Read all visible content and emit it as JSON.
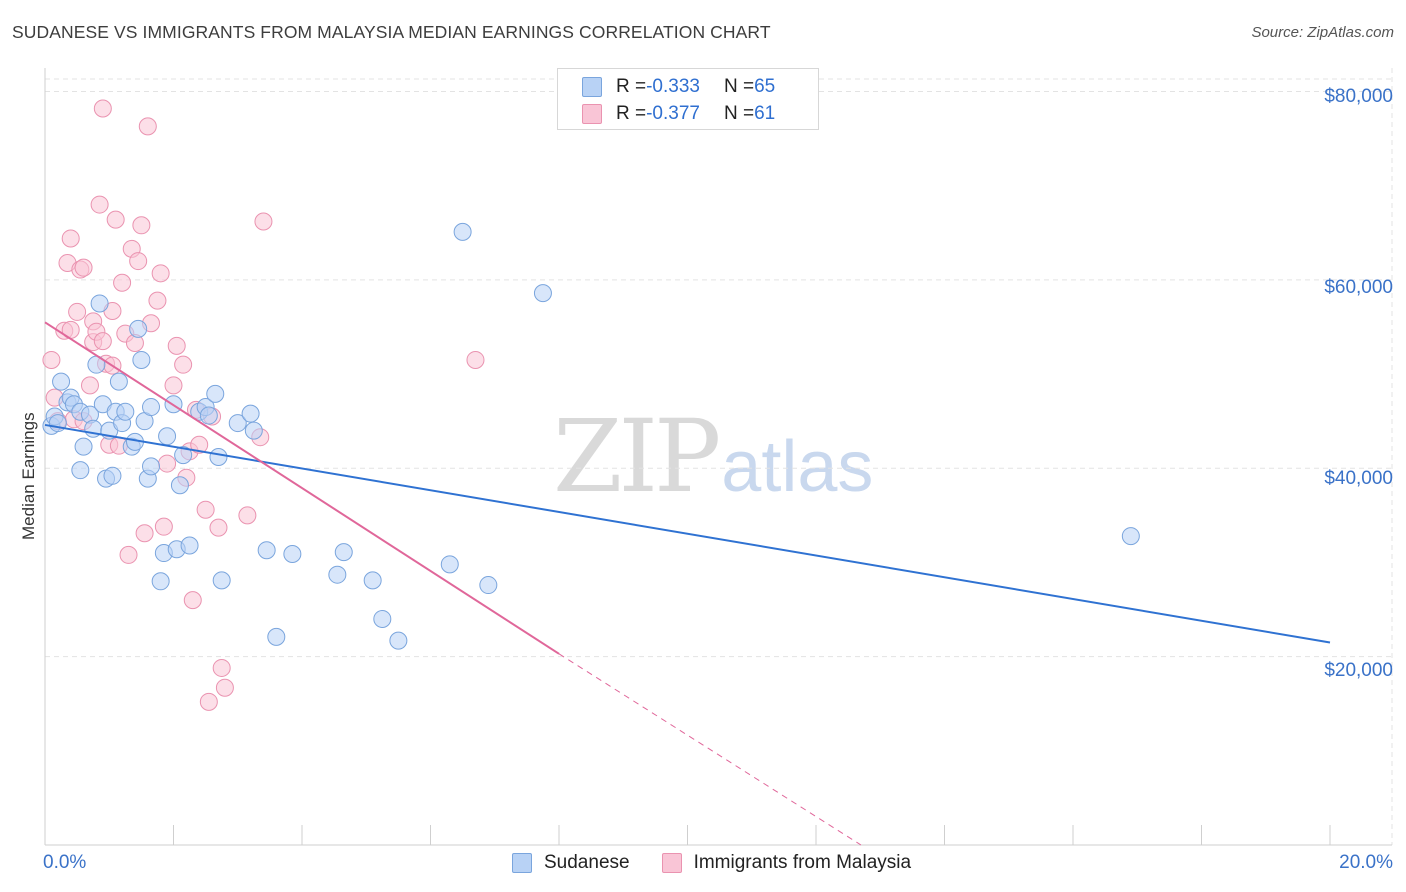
{
  "title": "SUDANESE VS IMMIGRANTS FROM MALAYSIA MEDIAN EARNINGS CORRELATION CHART",
  "source": "Source: ZipAtlas.com",
  "watermark": {
    "zip": "ZIP",
    "atlas": "atlas"
  },
  "legend": {
    "rows": [
      {
        "r_label": "R = ",
        "r_value": "-0.333",
        "n_label": "N = ",
        "n_value": "65"
      },
      {
        "r_label": "R = ",
        "r_value": "-0.377",
        "n_label": "N = ",
        "n_value": "61"
      }
    ]
  },
  "colors": {
    "blue_fill": "#b8d2f5",
    "blue_stroke": "#7aa5dd",
    "blue_line": "#2f72d2",
    "pink_fill": "#f9c5d6",
    "pink_stroke": "#ea93b0",
    "pink_line": "#e0679a",
    "grid": "#e3e3e3",
    "axis_text": "#3a72c8"
  },
  "chart_data": {
    "type": "scatter",
    "title": "SUDANESE VS IMMIGRANTS FROM MALAYSIA MEDIAN EARNINGS CORRELATION CHART",
    "xlabel": "",
    "ylabel": "Median Earnings",
    "xlim": [
      0,
      20
    ],
    "ylim": [
      0,
      82500
    ],
    "x_tick_labels": [
      "0.0%",
      "20.0%"
    ],
    "y_ticks": [
      20000,
      40000,
      60000,
      80000
    ],
    "y_tick_labels": [
      "$20,000",
      "$40,000",
      "$60,000",
      "$80,000"
    ],
    "grid": true,
    "legend_position": "bottom",
    "series": [
      {
        "name": "Sudanese",
        "color": "#b8d2f5",
        "r": "-0.333",
        "n": "65",
        "trend": {
          "x": [
            0.0,
            20.0
          ],
          "y": [
            44600,
            21500
          ]
        },
        "points": [
          [
            0.1,
            44500
          ],
          [
            0.15,
            45500
          ],
          [
            0.2,
            44800
          ],
          [
            0.25,
            49200
          ],
          [
            0.35,
            47000
          ],
          [
            0.4,
            47500
          ],
          [
            0.45,
            46800
          ],
          [
            0.55,
            46000
          ],
          [
            0.6,
            42300
          ],
          [
            0.55,
            39800
          ],
          [
            0.7,
            45700
          ],
          [
            0.75,
            44200
          ],
          [
            0.8,
            51000
          ],
          [
            0.85,
            57500
          ],
          [
            0.9,
            46800
          ],
          [
            0.95,
            38900
          ],
          [
            1.0,
            44000
          ],
          [
            1.05,
            39200
          ],
          [
            1.1,
            46000
          ],
          [
            1.15,
            49200
          ],
          [
            1.2,
            44800
          ],
          [
            1.25,
            46000
          ],
          [
            1.35,
            42300
          ],
          [
            1.4,
            42800
          ],
          [
            1.45,
            54800
          ],
          [
            1.5,
            51500
          ],
          [
            1.55,
            45000
          ],
          [
            1.6,
            38900
          ],
          [
            1.65,
            40200
          ],
          [
            1.65,
            46500
          ],
          [
            1.8,
            28000
          ],
          [
            1.85,
            31000
          ],
          [
            1.9,
            43400
          ],
          [
            2.0,
            46800
          ],
          [
            2.05,
            31400
          ],
          [
            2.1,
            38200
          ],
          [
            2.15,
            41400
          ],
          [
            2.25,
            31800
          ],
          [
            2.4,
            46000
          ],
          [
            2.5,
            46500
          ],
          [
            2.55,
            45600
          ],
          [
            2.65,
            47900
          ],
          [
            2.7,
            41200
          ],
          [
            2.75,
            28100
          ],
          [
            3.0,
            44800
          ],
          [
            3.2,
            45800
          ],
          [
            3.25,
            44000
          ],
          [
            3.45,
            31300
          ],
          [
            3.6,
            22100
          ],
          [
            3.85,
            30900
          ],
          [
            4.55,
            28700
          ],
          [
            4.65,
            31100
          ],
          [
            5.1,
            28100
          ],
          [
            5.25,
            24000
          ],
          [
            5.5,
            21700
          ],
          [
            6.3,
            29800
          ],
          [
            6.5,
            65100
          ],
          [
            6.9,
            27600
          ],
          [
            7.75,
            58600
          ],
          [
            16.9,
            32800
          ]
        ]
      },
      {
        "name": "Immigrants from Malaysia",
        "color": "#f9c5d6",
        "r": "-0.377",
        "n": "61",
        "trend": {
          "x": [
            0.0,
            8.0
          ],
          "y": [
            55500,
            20300
          ]
        },
        "trend_dashed": {
          "x": [
            8.0,
            12.7
          ],
          "y": [
            20300,
            0
          ]
        },
        "points": [
          [
            0.1,
            51500
          ],
          [
            0.15,
            47500
          ],
          [
            0.2,
            45000
          ],
          [
            0.3,
            54600
          ],
          [
            0.35,
            61800
          ],
          [
            0.4,
            64400
          ],
          [
            0.4,
            54700
          ],
          [
            0.45,
            45200
          ],
          [
            0.5,
            56600
          ],
          [
            0.55,
            61100
          ],
          [
            0.6,
            61300
          ],
          [
            0.6,
            45000
          ],
          [
            0.7,
            48800
          ],
          [
            0.75,
            55600
          ],
          [
            0.75,
            53400
          ],
          [
            0.8,
            54500
          ],
          [
            0.85,
            68000
          ],
          [
            0.9,
            53500
          ],
          [
            0.9,
            78200
          ],
          [
            0.95,
            51100
          ],
          [
            1.0,
            42500
          ],
          [
            1.05,
            56700
          ],
          [
            1.05,
            50900
          ],
          [
            1.1,
            66400
          ],
          [
            1.15,
            42400
          ],
          [
            1.2,
            59700
          ],
          [
            1.25,
            54300
          ],
          [
            1.3,
            30800
          ],
          [
            1.35,
            63300
          ],
          [
            1.4,
            53300
          ],
          [
            1.45,
            62000
          ],
          [
            1.5,
            65800
          ],
          [
            1.55,
            33100
          ],
          [
            1.6,
            76300
          ],
          [
            1.65,
            55400
          ],
          [
            1.75,
            57800
          ],
          [
            1.8,
            60700
          ],
          [
            1.85,
            33800
          ],
          [
            1.9,
            40500
          ],
          [
            2.0,
            48800
          ],
          [
            2.05,
            53000
          ],
          [
            2.15,
            51000
          ],
          [
            2.2,
            39000
          ],
          [
            2.25,
            41800
          ],
          [
            2.3,
            26000
          ],
          [
            2.35,
            46200
          ],
          [
            2.4,
            42500
          ],
          [
            2.5,
            35600
          ],
          [
            2.55,
            15200
          ],
          [
            2.6,
            45500
          ],
          [
            2.7,
            33700
          ],
          [
            2.75,
            18800
          ],
          [
            2.8,
            16700
          ],
          [
            3.15,
            35000
          ],
          [
            3.35,
            43300
          ],
          [
            3.4,
            66200
          ],
          [
            6.7,
            51500
          ]
        ]
      }
    ]
  }
}
